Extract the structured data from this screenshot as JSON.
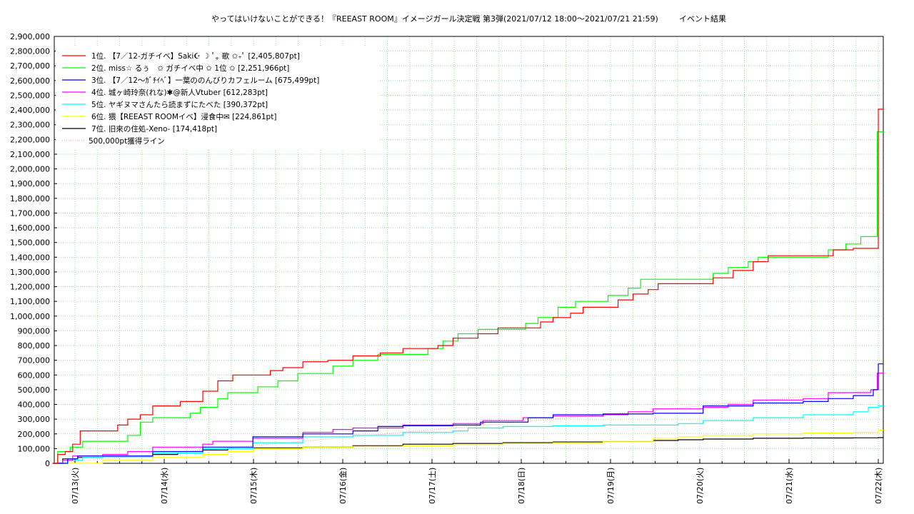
{
  "chart_data": {
    "type": "line",
    "title": "やってはいけないことができる！『REEAST ROOM』イメージガール決定戦 第3弾(2021/07/12 18:00〜2021/07/21 21:59)",
    "title_suffix": "イベント結果",
    "y_ticks": [
      "0",
      "100,000",
      "200,000",
      "300,000",
      "400,000",
      "500,000",
      "600,000",
      "700,000",
      "800,000",
      "900,000",
      "1,000,000",
      "1,100,000",
      "1,200,000",
      "1,300,000",
      "1,400,000",
      "1,500,000",
      "1,600,000",
      "1,700,000",
      "1,800,000",
      "1,900,000",
      "2,000,000",
      "2,100,000",
      "2,200,000",
      "2,300,000",
      "2,400,000",
      "2,500,000",
      "2,600,000",
      "2,700,000",
      "2,800,000",
      "2,900,000"
    ],
    "ylim": [
      0,
      2900000
    ],
    "x_range_days": [
      "07/12 18:00",
      "07/22 00:00"
    ],
    "x_ticks": [
      "07/13(火)",
      "07/14(水)",
      "07/15(木)",
      "07/16(金)",
      "07/17(土)",
      "07/18(日)",
      "07/19(月)",
      "07/20(火)",
      "07/21(水)",
      "07/22(木)"
    ],
    "grid": true,
    "legend_position": "top-left",
    "reference_line": {
      "name": "500,000pt獲得ライン",
      "value": 500000,
      "color": "#ff9999"
    },
    "series": [
      {
        "name": "1位. 【7／12-ガチイベ】Saki☪︎ ☽ ﾟ｡ 歌 ✩₊ﾟ [2,405,807pt]",
        "color": "#ff0000",
        "points": [
          [
            0,
            0
          ],
          [
            0.1,
            60000
          ],
          [
            0.25,
            80000
          ],
          [
            0.4,
            130000
          ],
          [
            0.55,
            220000
          ],
          [
            1.3,
            260000
          ],
          [
            1.5,
            300000
          ],
          [
            1.75,
            330000
          ],
          [
            2.0,
            390000
          ],
          [
            2.55,
            420000
          ],
          [
            3.0,
            490000
          ],
          [
            3.3,
            560000
          ],
          [
            3.6,
            600000
          ],
          [
            4.35,
            630000
          ],
          [
            4.6,
            650000
          ],
          [
            5.0,
            690000
          ],
          [
            5.5,
            700000
          ],
          [
            6.0,
            730000
          ],
          [
            6.55,
            750000
          ],
          [
            7.0,
            780000
          ],
          [
            7.7,
            800000
          ],
          [
            8.0,
            850000
          ],
          [
            8.5,
            880000
          ],
          [
            8.9,
            920000
          ],
          [
            9.75,
            960000
          ],
          [
            10.0,
            990000
          ],
          [
            10.35,
            1020000
          ],
          [
            10.6,
            1060000
          ],
          [
            11.3,
            1110000
          ],
          [
            11.6,
            1150000
          ],
          [
            11.9,
            1180000
          ],
          [
            12.1,
            1220000
          ],
          [
            12.8,
            1220000
          ],
          [
            13.2,
            1260000
          ],
          [
            13.6,
            1310000
          ],
          [
            14.0,
            1370000
          ],
          [
            14.3,
            1410000
          ],
          [
            15.0,
            1410000
          ],
          [
            15.6,
            1450000
          ],
          [
            16.0,
            1460000
          ],
          [
            16.5,
            2405807
          ]
        ]
      },
      {
        "name": "2位. miss☆ るぅ　✩ ガチイベ中 ✩ 1位 ✩ [2,251,966pt]",
        "color": "#00ff00",
        "points": [
          [
            0,
            0
          ],
          [
            0.1,
            80000
          ],
          [
            0.35,
            110000
          ],
          [
            0.6,
            150000
          ],
          [
            1.5,
            190000
          ],
          [
            1.75,
            280000
          ],
          [
            2.0,
            310000
          ],
          [
            2.75,
            340000
          ],
          [
            2.95,
            380000
          ],
          [
            3.3,
            440000
          ],
          [
            3.5,
            480000
          ],
          [
            4.1,
            520000
          ],
          [
            4.5,
            560000
          ],
          [
            4.9,
            610000
          ],
          [
            5.6,
            660000
          ],
          [
            6.0,
            700000
          ],
          [
            6.5,
            740000
          ],
          [
            7.5,
            780000
          ],
          [
            7.8,
            830000
          ],
          [
            8.1,
            880000
          ],
          [
            8.5,
            910000
          ],
          [
            9.45,
            950000
          ],
          [
            9.7,
            990000
          ],
          [
            10.1,
            1060000
          ],
          [
            10.45,
            1100000
          ],
          [
            11.1,
            1140000
          ],
          [
            11.5,
            1190000
          ],
          [
            11.75,
            1250000
          ],
          [
            13.2,
            1290000
          ],
          [
            13.5,
            1330000
          ],
          [
            13.9,
            1370000
          ],
          [
            14.1,
            1400000
          ],
          [
            15.0,
            1400000
          ],
          [
            15.5,
            1450000
          ],
          [
            15.85,
            1490000
          ],
          [
            16.15,
            1540000
          ],
          [
            16.48,
            2251966
          ]
        ]
      },
      {
        "name": "3位. 【7／12〜ｶﾞﾁｲﾍﾞ】一葉ののんびりカフェルーム [675,499pt]",
        "color": "#0000ff",
        "points": [
          [
            0,
            0
          ],
          [
            0.3,
            30000
          ],
          [
            0.5,
            50000
          ],
          [
            1.0,
            50000
          ],
          [
            2.0,
            80000
          ],
          [
            3.0,
            110000
          ],
          [
            4.0,
            180000
          ],
          [
            5.0,
            200000
          ],
          [
            6.0,
            220000
          ],
          [
            6.5,
            250000
          ],
          [
            7.0,
            255000
          ],
          [
            8.0,
            260000
          ],
          [
            8.55,
            280000
          ],
          [
            9.5,
            310000
          ],
          [
            10.0,
            330000
          ],
          [
            11.0,
            335000
          ],
          [
            12.0,
            340000
          ],
          [
            12.5,
            340000
          ],
          [
            13.0,
            390000
          ],
          [
            14.0,
            410000
          ],
          [
            15.0,
            420000
          ],
          [
            15.5,
            440000
          ],
          [
            16.0,
            460000
          ],
          [
            16.4,
            500000
          ],
          [
            16.5,
            675499
          ]
        ]
      },
      {
        "name": "4位. 城ヶ崎玲奈(れな)✱@新人Vtuber [612,283pt]",
        "color": "#ff00ff",
        "points": [
          [
            0,
            0
          ],
          [
            0.2,
            20000
          ],
          [
            0.4,
            50000
          ],
          [
            1.0,
            60000
          ],
          [
            1.5,
            80000
          ],
          [
            2.0,
            110000
          ],
          [
            3.0,
            130000
          ],
          [
            3.2,
            150000
          ],
          [
            4.0,
            170000
          ],
          [
            5.0,
            210000
          ],
          [
            5.6,
            230000
          ],
          [
            6.0,
            240000
          ],
          [
            7.0,
            260000
          ],
          [
            8.0,
            270000
          ],
          [
            8.6,
            290000
          ],
          [
            9.4,
            310000
          ],
          [
            10.0,
            320000
          ],
          [
            11.0,
            330000
          ],
          [
            11.5,
            350000
          ],
          [
            12.0,
            370000
          ],
          [
            13.0,
            380000
          ],
          [
            13.5,
            400000
          ],
          [
            14.0,
            430000
          ],
          [
            15.0,
            440000
          ],
          [
            15.5,
            480000
          ],
          [
            16.35,
            500000
          ],
          [
            16.48,
            612283
          ]
        ]
      },
      {
        "name": "5位. ヤギヌマさんたら読まずにたべた [390,372pt]",
        "color": "#00ffff",
        "points": [
          [
            0,
            0
          ],
          [
            0.3,
            20000
          ],
          [
            0.6,
            40000
          ],
          [
            1.0,
            45000
          ],
          [
            2.0,
            70000
          ],
          [
            3.0,
            100000
          ],
          [
            4.0,
            140000
          ],
          [
            5.0,
            180000
          ],
          [
            6.0,
            190000
          ],
          [
            7.0,
            210000
          ],
          [
            8.0,
            220000
          ],
          [
            8.3,
            240000
          ],
          [
            9.0,
            250000
          ],
          [
            10.0,
            255000
          ],
          [
            11.0,
            260000
          ],
          [
            11.5,
            260000
          ],
          [
            12.5,
            270000
          ],
          [
            13.0,
            290000
          ],
          [
            14.0,
            310000
          ],
          [
            15.0,
            330000
          ],
          [
            16.0,
            350000
          ],
          [
            16.3,
            380000
          ],
          [
            16.5,
            390372
          ]
        ]
      },
      {
        "name": "6位. 猥【REEAST ROOMイベ】浸食中✉ [224,861pt]",
        "color": "#ffff00",
        "points": [
          [
            0,
            0
          ],
          [
            1.0,
            20000
          ],
          [
            2.0,
            40000
          ],
          [
            3.0,
            60000
          ],
          [
            3.5,
            80000
          ],
          [
            4.0,
            100000
          ],
          [
            5.0,
            110000
          ],
          [
            6.0,
            115000
          ],
          [
            7.0,
            120000
          ],
          [
            8.0,
            125000
          ],
          [
            9.0,
            135000
          ],
          [
            10.0,
            140000
          ],
          [
            11.0,
            150000
          ],
          [
            12.0,
            170000
          ],
          [
            12.5,
            180000
          ],
          [
            13.0,
            190000
          ],
          [
            14.0,
            200000
          ],
          [
            15.0,
            205000
          ],
          [
            16.0,
            210000
          ],
          [
            16.5,
            224861
          ]
        ]
      },
      {
        "name": "7位. 旧來の住処-Xeno- [174,418pt]",
        "color": "#000000",
        "points": [
          [
            0,
            0
          ],
          [
            0.2,
            30000
          ],
          [
            0.5,
            40000
          ],
          [
            1.0,
            45000
          ],
          [
            2.0,
            60000
          ],
          [
            2.5,
            70000
          ],
          [
            3.0,
            90000
          ],
          [
            3.5,
            100000
          ],
          [
            4.0,
            105000
          ],
          [
            5.0,
            110000
          ],
          [
            6.0,
            120000
          ],
          [
            7.0,
            130000
          ],
          [
            8.0,
            135000
          ],
          [
            9.0,
            140000
          ],
          [
            10.0,
            145000
          ],
          [
            11.0,
            150000
          ],
          [
            12.0,
            155000
          ],
          [
            12.5,
            160000
          ],
          [
            13.0,
            165000
          ],
          [
            14.0,
            170000
          ],
          [
            15.0,
            172000
          ],
          [
            16.0,
            173000
          ],
          [
            16.5,
            174418
          ]
        ]
      }
    ]
  }
}
